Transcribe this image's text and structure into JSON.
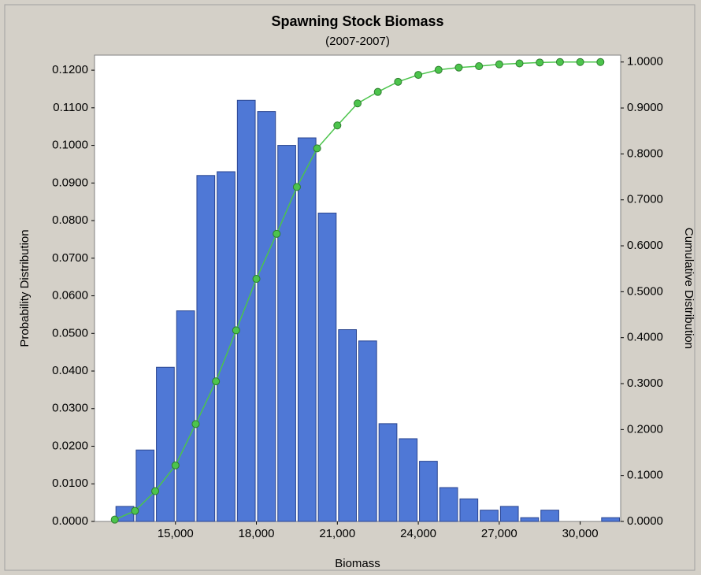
{
  "chart_data": {
    "type": "histogram",
    "title": "Spawning Stock Biomass",
    "subtitle": "(2007-2007)",
    "xlabel": "Biomass",
    "ylabel": "Probability Distribution",
    "y2label": "Cumulative Distribution",
    "bins": [
      12750,
      13500,
      14250,
      15000,
      15750,
      16500,
      17250,
      18000,
      18750,
      19500,
      20250,
      21000,
      21750,
      22500,
      23250,
      24000,
      24750,
      25500,
      26250,
      27000,
      27750,
      28500,
      29250,
      30000,
      30750,
      31500
    ],
    "values": [
      0.004,
      0.019,
      0.041,
      0.056,
      0.092,
      0.093,
      0.112,
      0.109,
      0.1,
      0.102,
      0.082,
      0.051,
      0.048,
      0.026,
      0.022,
      0.016,
      0.009,
      0.006,
      0.003,
      0.004,
      0.001,
      0.003,
      0.0,
      0.0,
      0.001
    ],
    "color": "#4f78d6",
    "line": {
      "axis": "y2",
      "color": "#4cc44c",
      "x": [
        12750,
        13500,
        14250,
        15000,
        15750,
        16500,
        17250,
        18000,
        18750,
        19500,
        20250,
        21000,
        21750,
        22500,
        23250,
        24000,
        24750,
        25500,
        26250,
        27000,
        27750,
        28500,
        29250,
        30000,
        30750
      ],
      "values": [
        0.004,
        0.023,
        0.066,
        0.122,
        0.212,
        0.305,
        0.416,
        0.528,
        0.626,
        0.728,
        0.812,
        0.862,
        0.91,
        0.935,
        0.957,
        0.972,
        0.983,
        0.988,
        0.991,
        0.995,
        0.997,
        0.999,
        1.0,
        1.0,
        1.0
      ]
    },
    "xlim": [
      12000,
      31500
    ],
    "xticks": [
      {
        "value": 15000,
        "label": "15,000"
      },
      {
        "value": 18000,
        "label": "18,000"
      },
      {
        "value": 21000,
        "label": "21,000"
      },
      {
        "value": 24000,
        "label": "24,000"
      },
      {
        "value": 27000,
        "label": "27,000"
      },
      {
        "value": 30000,
        "label": "30,000"
      }
    ],
    "ylim": [
      0,
      0.124
    ],
    "yticks": [
      {
        "value": 0,
        "label": "0.0000"
      },
      {
        "value": 0.01,
        "label": "0.0100"
      },
      {
        "value": 0.02,
        "label": "0.0200"
      },
      {
        "value": 0.03,
        "label": "0.0300"
      },
      {
        "value": 0.04,
        "label": "0.0400"
      },
      {
        "value": 0.05,
        "label": "0.0500"
      },
      {
        "value": 0.06,
        "label": "0.0600"
      },
      {
        "value": 0.07,
        "label": "0.0700"
      },
      {
        "value": 0.08,
        "label": "0.0800"
      },
      {
        "value": 0.09,
        "label": "0.0900"
      },
      {
        "value": 0.1,
        "label": "0.1000"
      },
      {
        "value": 0.11,
        "label": "0.1100"
      },
      {
        "value": 0.12,
        "label": "0.1200"
      }
    ],
    "y2lim": [
      0,
      1.015
    ],
    "y2ticks": [
      {
        "value": 0,
        "label": "0.0000"
      },
      {
        "value": 0.1,
        "label": "0.1000"
      },
      {
        "value": 0.2,
        "label": "0.2000"
      },
      {
        "value": 0.3,
        "label": "0.3000"
      },
      {
        "value": 0.4,
        "label": "0.4000"
      },
      {
        "value": 0.5,
        "label": "0.5000"
      },
      {
        "value": 0.6,
        "label": "0.6000"
      },
      {
        "value": 0.7,
        "label": "0.7000"
      },
      {
        "value": 0.8,
        "label": "0.8000"
      },
      {
        "value": 0.9,
        "label": "0.9000"
      },
      {
        "value": 1.0,
        "label": "1.0000"
      }
    ]
  }
}
